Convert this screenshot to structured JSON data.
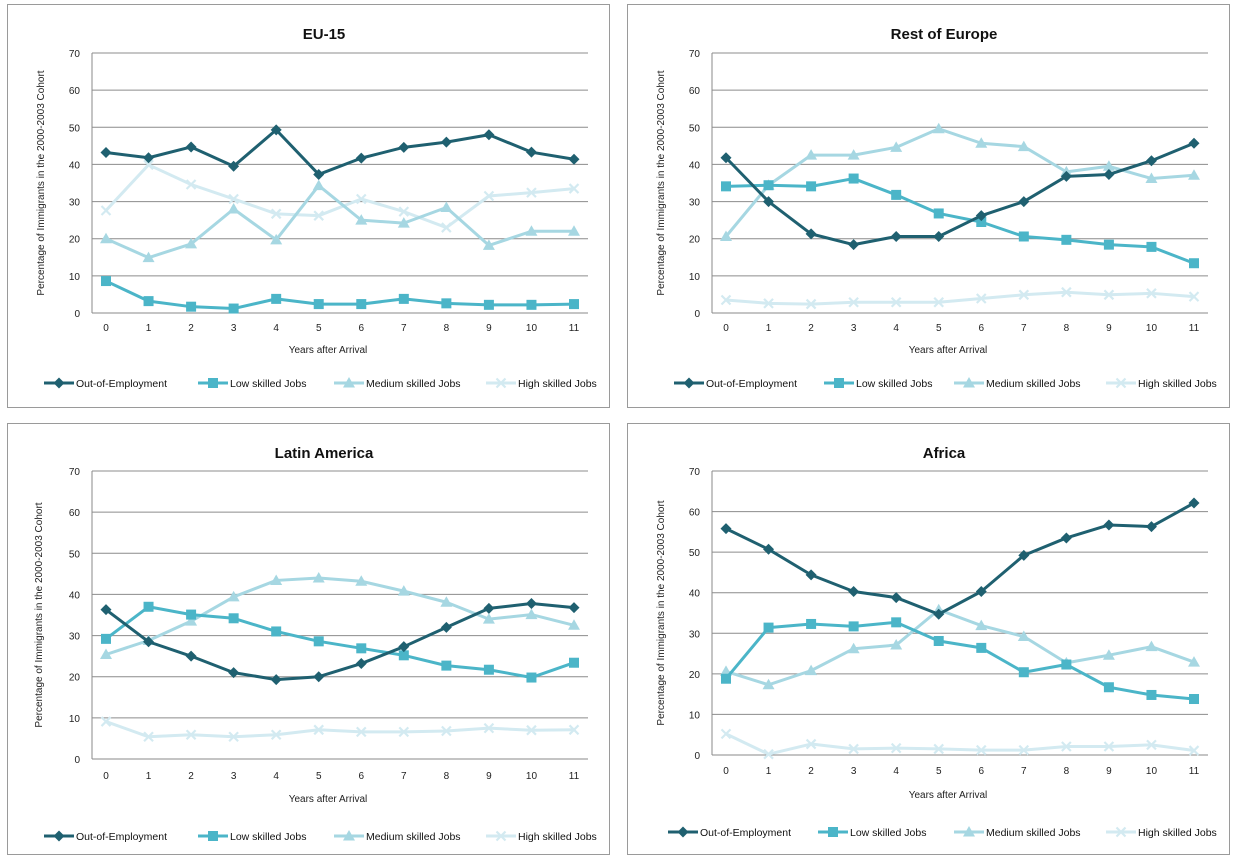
{
  "colors": {
    "out": "#1f6070",
    "low": "#4bb5c8",
    "medium": "#a6d7e2",
    "high": "#d3eaf1"
  },
  "chart_data": [
    {
      "type": "line",
      "title": "EU-15",
      "xlabel": "Years after Arrival",
      "ylabel": "Percentage of Immigrants in the 2000-2003 Cohort",
      "ylim": [
        0,
        70
      ],
      "yticks": [
        "0",
        "10",
        "20",
        "30",
        "40",
        "50",
        "60",
        "70"
      ],
      "categories": [
        "0",
        "1",
        "2",
        "3",
        "4",
        "5",
        "6",
        "7",
        "8",
        "9",
        "10",
        "11"
      ],
      "legend": "bottom",
      "grid": true,
      "series": [
        {
          "name": "Out-of-Employment",
          "marker": "diamond",
          "values": [
            43.2,
            41.8,
            44.7,
            39.5,
            49.3,
            37.3,
            41.7,
            44.6,
            46,
            48,
            43.3,
            41.4
          ]
        },
        {
          "name": "Low skilled Jobs",
          "marker": "square",
          "values": [
            8.6,
            3.2,
            1.7,
            1.2,
            3.8,
            2.4,
            2.4,
            3.8,
            2.6,
            2.2,
            2.2,
            2.4
          ]
        },
        {
          "name": "Medium skilled Jobs",
          "marker": "triangle",
          "values": [
            20,
            14.9,
            18.6,
            28,
            19.7,
            34.3,
            25,
            24.2,
            28.4,
            18.2,
            22,
            22
          ]
        },
        {
          "name": "High skilled Jobs",
          "marker": "x",
          "values": [
            27.6,
            39.9,
            34.6,
            30.7,
            26.7,
            26.2,
            30.7,
            27.3,
            23,
            31.5,
            32.4,
            33.5
          ]
        }
      ]
    },
    {
      "type": "line",
      "title": "Rest of Europe",
      "xlabel": "Years after Arrival",
      "ylabel": "Percentage of Immigrants in the 2000-2003 Cohort",
      "ylim": [
        0,
        70
      ],
      "yticks": [
        "0",
        "10",
        "20",
        "30",
        "40",
        "50",
        "60",
        "70"
      ],
      "categories": [
        "0",
        "1",
        "2",
        "3",
        "4",
        "5",
        "6",
        "7",
        "8",
        "9",
        "10",
        "11"
      ],
      "legend": "bottom",
      "grid": true,
      "series": [
        {
          "name": "Out-of-Employment",
          "marker": "diamond",
          "values": [
            41.8,
            30,
            21.3,
            18.4,
            20.6,
            20.6,
            26.2,
            30,
            36.8,
            37.3,
            41,
            45.7
          ]
        },
        {
          "name": "Low skilled Jobs",
          "marker": "square",
          "values": [
            34.1,
            34.4,
            34.1,
            36.2,
            31.8,
            26.8,
            24.5,
            20.6,
            19.7,
            18.4,
            17.8,
            13.4
          ]
        },
        {
          "name": "Medium skilled Jobs",
          "marker": "triangle",
          "values": [
            20.6,
            34.4,
            42.5,
            42.5,
            44.6,
            49.6,
            45.7,
            44.8,
            38,
            39.5,
            36.2,
            37.1
          ]
        },
        {
          "name": "High skilled Jobs",
          "marker": "x",
          "values": [
            3.5,
            2.6,
            2.4,
            2.9,
            2.9,
            2.9,
            3.9,
            4.9,
            5.6,
            4.9,
            5.3,
            4.4
          ]
        }
      ]
    },
    {
      "type": "line",
      "title": "Latin America",
      "xlabel": "Years after Arrival",
      "ylabel": "Percentage of Immigrants in the 2000-2003 Cohort",
      "ylim": [
        0,
        70
      ],
      "yticks": [
        "0",
        "10",
        "20",
        "30",
        "40",
        "50",
        "60",
        "70"
      ],
      "categories": [
        "0",
        "1",
        "2",
        "3",
        "4",
        "5",
        "6",
        "7",
        "8",
        "9",
        "10",
        "11"
      ],
      "legend": "bottom",
      "grid": true,
      "series": [
        {
          "name": "Out-of-Employment",
          "marker": "diamond",
          "values": [
            36.3,
            28.5,
            25,
            21,
            19.3,
            20,
            23.2,
            27.3,
            32,
            36.6,
            37.8,
            36.8
          ]
        },
        {
          "name": "Low skilled Jobs",
          "marker": "square",
          "values": [
            29.2,
            37,
            35.1,
            34.2,
            31,
            28.6,
            26.9,
            25.2,
            22.7,
            21.7,
            19.8,
            23.4
          ]
        },
        {
          "name": "Medium skilled Jobs",
          "marker": "triangle",
          "values": [
            25.4,
            28.8,
            33.5,
            39.4,
            43.4,
            44,
            43.2,
            40.8,
            38.1,
            34,
            35.1,
            32.5
          ]
        },
        {
          "name": "High skilled Jobs",
          "marker": "x",
          "values": [
            9.1,
            5.4,
            5.9,
            5.4,
            5.9,
            7.1,
            6.6,
            6.6,
            6.8,
            7.5,
            7,
            7.1
          ]
        }
      ]
    },
    {
      "type": "line",
      "title": "Africa",
      "xlabel": "Years after Arrival",
      "ylabel": "Percentage of Immigrants in the 2000-2003 Cohort",
      "ylim": [
        0,
        70
      ],
      "yticks": [
        "0",
        "10",
        "20",
        "30",
        "40",
        "50",
        "60",
        "70"
      ],
      "categories": [
        "0",
        "1",
        "2",
        "3",
        "4",
        "5",
        "6",
        "7",
        "8",
        "9",
        "10",
        "11"
      ],
      "legend": "bottom",
      "grid": true,
      "series": [
        {
          "name": "Out-of-Employment",
          "marker": "diamond",
          "values": [
            55.8,
            50.7,
            44.4,
            40.3,
            38.8,
            34.7,
            40.3,
            49.2,
            53.5,
            56.7,
            56.3,
            62.1
          ]
        },
        {
          "name": "Low skilled Jobs",
          "marker": "square",
          "values": [
            18.8,
            31.4,
            32.3,
            31.7,
            32.7,
            28.1,
            26.4,
            20.4,
            22.3,
            16.7,
            14.8,
            13.8
          ]
        },
        {
          "name": "Medium skilled Jobs",
          "marker": "triangle",
          "values": [
            20.6,
            17.3,
            20.8,
            26.2,
            27.1,
            35.8,
            31.9,
            29.2,
            22.7,
            24.6,
            26.7,
            22.9
          ]
        },
        {
          "name": "High skilled Jobs",
          "marker": "x",
          "values": [
            5.2,
            0.2,
            2.7,
            1.5,
            1.7,
            1.5,
            1.2,
            1.2,
            2.1,
            2.1,
            2.5,
            1.1
          ]
        }
      ]
    }
  ]
}
